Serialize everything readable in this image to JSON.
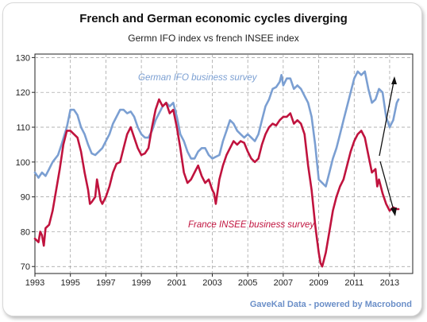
{
  "chart_data": {
    "type": "line",
    "title": "French and German economic cycles diverging",
    "subtitle": "Germn IFO index vs french INSEE index",
    "xlim": [
      1993,
      2014.3
    ],
    "ylim": [
      68,
      131
    ],
    "x_ticks": [
      "1993",
      "1995",
      "1997",
      "1999",
      "2001",
      "2003",
      "2005",
      "2007",
      "2009",
      "2011",
      "2013"
    ],
    "y_ticks": [
      "70",
      "80",
      "90",
      "100",
      "110",
      "120",
      "130"
    ],
    "grid": true,
    "series": [
      {
        "name": "German IFO business survey",
        "color": "#7b9fd2",
        "points": [
          [
            1993.0,
            97
          ],
          [
            1993.2,
            95.5
          ],
          [
            1993.4,
            97
          ],
          [
            1993.6,
            96
          ],
          [
            1993.8,
            98
          ],
          [
            1994.0,
            100
          ],
          [
            1994.3,
            102
          ],
          [
            1994.5,
            105
          ],
          [
            1994.8,
            110
          ],
          [
            1995.0,
            115
          ],
          [
            1995.2,
            115
          ],
          [
            1995.4,
            113.5
          ],
          [
            1995.6,
            110
          ],
          [
            1995.8,
            108
          ],
          [
            1996.0,
            105
          ],
          [
            1996.2,
            102.5
          ],
          [
            1996.4,
            102
          ],
          [
            1996.6,
            103
          ],
          [
            1996.8,
            104
          ],
          [
            1997.0,
            106
          ],
          [
            1997.2,
            108
          ],
          [
            1997.4,
            111
          ],
          [
            1997.6,
            113
          ],
          [
            1997.8,
            115
          ],
          [
            1998.0,
            115
          ],
          [
            1998.2,
            114
          ],
          [
            1998.4,
            114.5
          ],
          [
            1998.6,
            113
          ],
          [
            1998.8,
            110
          ],
          [
            1999.0,
            108
          ],
          [
            1999.2,
            107
          ],
          [
            1999.4,
            107
          ],
          [
            1999.6,
            109
          ],
          [
            1999.8,
            112
          ],
          [
            2000.0,
            114
          ],
          [
            2000.2,
            116
          ],
          [
            2000.4,
            117
          ],
          [
            2000.6,
            116
          ],
          [
            2000.8,
            117
          ],
          [
            2001.0,
            113
          ],
          [
            2001.2,
            108
          ],
          [
            2001.4,
            106
          ],
          [
            2001.6,
            103
          ],
          [
            2001.8,
            101
          ],
          [
            2002.0,
            101
          ],
          [
            2002.2,
            103
          ],
          [
            2002.4,
            104
          ],
          [
            2002.6,
            104
          ],
          [
            2002.8,
            102
          ],
          [
            2003.0,
            101
          ],
          [
            2003.2,
            101.5
          ],
          [
            2003.4,
            102
          ],
          [
            2003.6,
            106
          ],
          [
            2003.8,
            109
          ],
          [
            2004.0,
            112
          ],
          [
            2004.2,
            111
          ],
          [
            2004.4,
            109
          ],
          [
            2004.6,
            108
          ],
          [
            2004.8,
            107
          ],
          [
            2005.0,
            108
          ],
          [
            2005.2,
            107
          ],
          [
            2005.4,
            106
          ],
          [
            2005.6,
            108
          ],
          [
            2005.8,
            112
          ],
          [
            2006.0,
            116
          ],
          [
            2006.2,
            118
          ],
          [
            2006.4,
            121
          ],
          [
            2006.6,
            121.5
          ],
          [
            2006.8,
            123
          ],
          [
            2006.9,
            125
          ],
          [
            2007.0,
            122
          ],
          [
            2007.2,
            124
          ],
          [
            2007.4,
            124
          ],
          [
            2007.6,
            121
          ],
          [
            2007.8,
            122
          ],
          [
            2008.0,
            121
          ],
          [
            2008.2,
            119
          ],
          [
            2008.4,
            117
          ],
          [
            2008.6,
            113
          ],
          [
            2008.8,
            105
          ],
          [
            2009.0,
            95
          ],
          [
            2009.2,
            94
          ],
          [
            2009.4,
            93
          ],
          [
            2009.6,
            97
          ],
          [
            2009.8,
            101
          ],
          [
            2010.0,
            104
          ],
          [
            2010.2,
            108
          ],
          [
            2010.4,
            112
          ],
          [
            2010.6,
            116
          ],
          [
            2010.8,
            120
          ],
          [
            2011.0,
            124
          ],
          [
            2011.2,
            126
          ],
          [
            2011.4,
            125
          ],
          [
            2011.6,
            126
          ],
          [
            2011.8,
            121
          ],
          [
            2012.0,
            117
          ],
          [
            2012.2,
            118
          ],
          [
            2012.4,
            121
          ],
          [
            2012.6,
            120
          ],
          [
            2012.8,
            113
          ],
          [
            2013.0,
            110
          ],
          [
            2013.2,
            112
          ],
          [
            2013.4,
            117
          ],
          [
            2013.5,
            118
          ]
        ]
      },
      {
        "name": "France INSEE business survey",
        "color": "#c0133e",
        "points": [
          [
            1993.0,
            78
          ],
          [
            1993.2,
            77
          ],
          [
            1993.3,
            80
          ],
          [
            1993.4,
            79
          ],
          [
            1993.5,
            76
          ],
          [
            1993.6,
            81
          ],
          [
            1993.8,
            82
          ],
          [
            1994.0,
            86
          ],
          [
            1994.2,
            92
          ],
          [
            1994.4,
            98
          ],
          [
            1994.6,
            105
          ],
          [
            1994.8,
            109
          ],
          [
            1995.0,
            109
          ],
          [
            1995.2,
            108
          ],
          [
            1995.4,
            107
          ],
          [
            1995.6,
            103
          ],
          [
            1995.8,
            97
          ],
          [
            1996.0,
            92
          ],
          [
            1996.1,
            88
          ],
          [
            1996.2,
            88.5
          ],
          [
            1996.4,
            90
          ],
          [
            1996.5,
            95
          ],
          [
            1996.6,
            92
          ],
          [
            1996.7,
            89
          ],
          [
            1996.8,
            88
          ],
          [
            1997.0,
            90
          ],
          [
            1997.2,
            93
          ],
          [
            1997.4,
            97
          ],
          [
            1997.6,
            99.5
          ],
          [
            1997.8,
            100
          ],
          [
            1998.0,
            104
          ],
          [
            1998.2,
            108
          ],
          [
            1998.4,
            110
          ],
          [
            1998.6,
            107
          ],
          [
            1998.8,
            104
          ],
          [
            1999.0,
            102
          ],
          [
            1999.2,
            102.5
          ],
          [
            1999.4,
            104
          ],
          [
            1999.6,
            110
          ],
          [
            1999.8,
            115
          ],
          [
            2000.0,
            118
          ],
          [
            2000.2,
            116
          ],
          [
            2000.4,
            117
          ],
          [
            2000.6,
            114
          ],
          [
            2000.8,
            115
          ],
          [
            2001.0,
            110
          ],
          [
            2001.2,
            104
          ],
          [
            2001.4,
            97
          ],
          [
            2001.6,
            94
          ],
          [
            2001.8,
            95
          ],
          [
            2002.0,
            97
          ],
          [
            2002.2,
            99
          ],
          [
            2002.4,
            96
          ],
          [
            2002.6,
            94
          ],
          [
            2002.8,
            95
          ],
          [
            2003.0,
            92
          ],
          [
            2003.1,
            91
          ],
          [
            2003.2,
            88
          ],
          [
            2003.4,
            95
          ],
          [
            2003.6,
            99
          ],
          [
            2003.8,
            102
          ],
          [
            2004.0,
            104
          ],
          [
            2004.2,
            106
          ],
          [
            2004.4,
            105
          ],
          [
            2004.6,
            106
          ],
          [
            2004.8,
            105.5
          ],
          [
            2005.0,
            103
          ],
          [
            2005.2,
            101
          ],
          [
            2005.4,
            100
          ],
          [
            2005.6,
            101
          ],
          [
            2005.8,
            105
          ],
          [
            2006.0,
            108
          ],
          [
            2006.2,
            110
          ],
          [
            2006.4,
            111
          ],
          [
            2006.6,
            110.5
          ],
          [
            2006.8,
            112
          ],
          [
            2007.0,
            113
          ],
          [
            2007.2,
            113
          ],
          [
            2007.4,
            114
          ],
          [
            2007.6,
            111
          ],
          [
            2007.8,
            112
          ],
          [
            2008.0,
            111
          ],
          [
            2008.2,
            108
          ],
          [
            2008.4,
            99
          ],
          [
            2008.6,
            92
          ],
          [
            2008.8,
            82
          ],
          [
            2008.9,
            78
          ],
          [
            2009.0,
            74
          ],
          [
            2009.1,
            71
          ],
          [
            2009.2,
            70
          ],
          [
            2009.4,
            74
          ],
          [
            2009.6,
            80
          ],
          [
            2009.8,
            86
          ],
          [
            2010.0,
            90
          ],
          [
            2010.2,
            93
          ],
          [
            2010.4,
            95
          ],
          [
            2010.6,
            99
          ],
          [
            2010.8,
            103
          ],
          [
            2011.0,
            106
          ],
          [
            2011.2,
            108
          ],
          [
            2011.4,
            109
          ],
          [
            2011.6,
            107
          ],
          [
            2011.8,
            102
          ],
          [
            2012.0,
            97
          ],
          [
            2012.2,
            98
          ],
          [
            2012.3,
            93
          ],
          [
            2012.4,
            95
          ],
          [
            2012.6,
            91
          ],
          [
            2012.8,
            88
          ],
          [
            2013.0,
            86
          ],
          [
            2013.2,
            87
          ],
          [
            2013.4,
            86.5
          ],
          [
            2013.5,
            86.5
          ]
        ]
      }
    ],
    "annotations": {
      "german_label": "German IFO business survey",
      "france_label": "France INSEE business survey",
      "credit": "GaveKal Data - powered by Macrobond"
    }
  }
}
